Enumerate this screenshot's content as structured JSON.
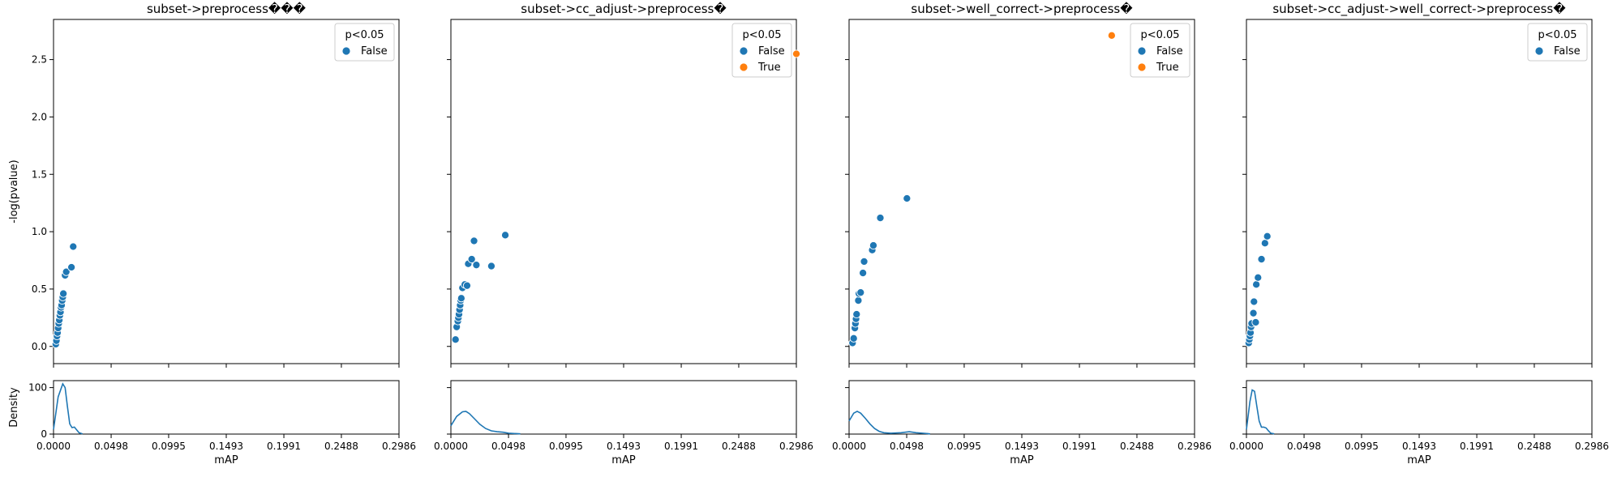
{
  "figure": {
    "background": "#ffffff"
  },
  "colors": {
    "false": "#1f77b4",
    "true": "#ff7f0e",
    "density": "#1f77b4"
  },
  "chart_data": [
    {
      "type": "scatter",
      "title": "subset->preprocess���",
      "ylabel": "-log(pvalue)",
      "xlabel": "mAP",
      "xlim": [
        0,
        0.2986
      ],
      "ylim": [
        -0.15,
        2.85
      ],
      "xticks": [
        0.0,
        0.0498,
        0.0995,
        0.1493,
        0.1991,
        0.2488,
        0.2986
      ],
      "xtick_labels": [
        "0.0000",
        "0.0498",
        "0.0995",
        "0.1493",
        "0.1991",
        "0.2488",
        "0.2986"
      ],
      "yticks": [
        0.0,
        0.5,
        1.0,
        1.5,
        2.0,
        2.5
      ],
      "ytick_labels": [
        "0.0",
        "0.5",
        "1.0",
        "1.5",
        "2.0",
        "2.5"
      ],
      "legend": {
        "title": "p<0.05",
        "placement": "upper right",
        "entries": [
          "False"
        ]
      },
      "series": [
        {
          "name": "False",
          "color": "#1f77b4",
          "points": [
            [
              0.002,
              0.02
            ],
            [
              0.0025,
              0.05
            ],
            [
              0.003,
              0.09
            ],
            [
              0.0035,
              0.12
            ],
            [
              0.004,
              0.16
            ],
            [
              0.0045,
              0.2
            ],
            [
              0.005,
              0.23
            ],
            [
              0.0055,
              0.27
            ],
            [
              0.006,
              0.3
            ],
            [
              0.0065,
              0.34
            ],
            [
              0.007,
              0.36
            ],
            [
              0.0075,
              0.4
            ],
            [
              0.008,
              0.43
            ],
            [
              0.0085,
              0.46
            ],
            [
              0.01,
              0.62
            ],
            [
              0.011,
              0.65
            ],
            [
              0.0155,
              0.69
            ],
            [
              0.017,
              0.87
            ]
          ]
        }
      ],
      "density": {
        "ylabel": "Density",
        "ylim": [
          0,
          115
        ],
        "yticks": [
          0,
          100
        ],
        "ytick_labels": [
          "0",
          "100"
        ],
        "curve": [
          [
            0,
            10
          ],
          [
            0.004,
            80
          ],
          [
            0.008,
            108
          ],
          [
            0.01,
            100
          ],
          [
            0.012,
            60
          ],
          [
            0.014,
            22
          ],
          [
            0.016,
            14
          ],
          [
            0.018,
            15
          ],
          [
            0.02,
            9
          ],
          [
            0.022,
            3
          ],
          [
            0.025,
            0.5
          ]
        ]
      }
    },
    {
      "type": "scatter",
      "title": "subset->cc_adjust->preprocess�",
      "ylabel": "",
      "xlabel": "mAP",
      "xlim": [
        0,
        0.2986
      ],
      "ylim": [
        -0.15,
        2.85
      ],
      "xticks": [
        0.0,
        0.0498,
        0.0995,
        0.1493,
        0.1991,
        0.2488,
        0.2986
      ],
      "xtick_labels": [
        "0.0000",
        "0.0498",
        "0.0995",
        "0.1493",
        "0.1991",
        "0.2488",
        "0.2986"
      ],
      "yticks": [
        0.0,
        0.5,
        1.0,
        1.5,
        2.0,
        2.5
      ],
      "ytick_labels": [
        "",
        "",
        "",
        "",
        "",
        ""
      ],
      "legend": {
        "title": "p<0.05",
        "placement": "upper right",
        "entries": [
          "False",
          "True"
        ]
      },
      "series": [
        {
          "name": "False",
          "color": "#1f77b4",
          "points": [
            [
              0.004,
              0.06
            ],
            [
              0.005,
              0.17
            ],
            [
              0.006,
              0.22
            ],
            [
              0.0065,
              0.25
            ],
            [
              0.007,
              0.28
            ],
            [
              0.0075,
              0.32
            ],
            [
              0.008,
              0.36
            ],
            [
              0.0085,
              0.4
            ],
            [
              0.009,
              0.42
            ],
            [
              0.01,
              0.51
            ],
            [
              0.012,
              0.54
            ],
            [
              0.014,
              0.53
            ],
            [
              0.015,
              0.72
            ],
            [
              0.018,
              0.76
            ],
            [
              0.02,
              0.92
            ],
            [
              0.022,
              0.71
            ],
            [
              0.035,
              0.7
            ],
            [
              0.047,
              0.97
            ]
          ]
        },
        {
          "name": "True",
          "color": "#ff7f0e",
          "points": [
            [
              0.2986,
              2.55
            ]
          ]
        }
      ],
      "density": {
        "ylabel": "",
        "ylim": [
          0,
          115
        ],
        "yticks": [
          0,
          100
        ],
        "ytick_labels": [
          "",
          ""
        ],
        "curve": [
          [
            0,
            18
          ],
          [
            0.005,
            38
          ],
          [
            0.01,
            48
          ],
          [
            0.013,
            49
          ],
          [
            0.016,
            44
          ],
          [
            0.02,
            34
          ],
          [
            0.025,
            21
          ],
          [
            0.03,
            12
          ],
          [
            0.035,
            7
          ],
          [
            0.04,
            5
          ],
          [
            0.045,
            4
          ],
          [
            0.05,
            2
          ],
          [
            0.06,
            0.5
          ]
        ]
      }
    },
    {
      "type": "scatter",
      "title": "subset->well_correct->preprocess�",
      "ylabel": "",
      "xlabel": "mAP",
      "xlim": [
        0,
        0.2986
      ],
      "ylim": [
        -0.15,
        2.85
      ],
      "xticks": [
        0.0,
        0.0498,
        0.0995,
        0.1493,
        0.1991,
        0.2488,
        0.2986
      ],
      "xtick_labels": [
        "0.0000",
        "0.0498",
        "0.0995",
        "0.1493",
        "0.1991",
        "0.2488",
        "0.2986"
      ],
      "yticks": [
        0.0,
        0.5,
        1.0,
        1.5,
        2.0,
        2.5
      ],
      "ytick_labels": [
        "",
        "",
        "",
        "",
        "",
        ""
      ],
      "legend": {
        "title": "p<0.05",
        "placement": "upper right",
        "entries": [
          "False",
          "True"
        ]
      },
      "series": [
        {
          "name": "False",
          "color": "#1f77b4",
          "points": [
            [
              0.003,
              0.03
            ],
            [
              0.004,
              0.07
            ],
            [
              0.005,
              0.16
            ],
            [
              0.0055,
              0.2
            ],
            [
              0.006,
              0.24
            ],
            [
              0.0065,
              0.28
            ],
            [
              0.008,
              0.4
            ],
            [
              0.0085,
              0.46
            ],
            [
              0.01,
              0.47
            ],
            [
              0.012,
              0.64
            ],
            [
              0.013,
              0.74
            ],
            [
              0.02,
              0.84
            ],
            [
              0.021,
              0.88
            ],
            [
              0.027,
              1.12
            ],
            [
              0.05,
              1.29
            ]
          ]
        },
        {
          "name": "True",
          "color": "#ff7f0e",
          "points": [
            [
              0.227,
              2.71
            ]
          ]
        }
      ],
      "density": {
        "ylabel": "",
        "ylim": [
          0,
          115
        ],
        "yticks": [
          0,
          100
        ],
        "ytick_labels": [
          "",
          ""
        ],
        "curve": [
          [
            0,
            28
          ],
          [
            0.004,
            45
          ],
          [
            0.007,
            49
          ],
          [
            0.01,
            45
          ],
          [
            0.014,
            34
          ],
          [
            0.018,
            22
          ],
          [
            0.022,
            12
          ],
          [
            0.026,
            6
          ],
          [
            0.03,
            3
          ],
          [
            0.036,
            2
          ],
          [
            0.045,
            3
          ],
          [
            0.052,
            5
          ],
          [
            0.058,
            3
          ],
          [
            0.068,
            1
          ],
          [
            0.07,
            0.3
          ]
        ]
      }
    },
    {
      "type": "scatter",
      "title": "subset->cc_adjust->well_correct->preprocess�",
      "ylabel": "",
      "xlabel": "mAP",
      "xlim": [
        0,
        0.2986
      ],
      "ylim": [
        -0.15,
        2.85
      ],
      "xticks": [
        0.0,
        0.0498,
        0.0995,
        0.1493,
        0.1991,
        0.2488,
        0.2986
      ],
      "xtick_labels": [
        "0.0000",
        "0.0498",
        "0.0995",
        "0.1493",
        "0.1991",
        "0.2488",
        "0.2986"
      ],
      "yticks": [
        0.0,
        0.5,
        1.0,
        1.5,
        2.0,
        2.5
      ],
      "ytick_labels": [
        "",
        "",
        "",
        "",
        "",
        ""
      ],
      "legend": {
        "title": "p<0.05",
        "placement": "upper right",
        "entries": [
          "False"
        ]
      },
      "series": [
        {
          "name": "False",
          "color": "#1f77b4",
          "points": [
            [
              0.002,
              0.03
            ],
            [
              0.0025,
              0.06
            ],
            [
              0.003,
              0.09
            ],
            [
              0.0035,
              0.12
            ],
            [
              0.004,
              0.17
            ],
            [
              0.0045,
              0.2
            ],
            [
              0.006,
              0.29
            ],
            [
              0.0065,
              0.39
            ],
            [
              0.008,
              0.21
            ],
            [
              0.0085,
              0.54
            ],
            [
              0.01,
              0.6
            ],
            [
              0.013,
              0.76
            ],
            [
              0.016,
              0.9
            ],
            [
              0.018,
              0.96
            ]
          ]
        }
      ],
      "density": {
        "ylabel": "",
        "ylim": [
          0,
          115
        ],
        "yticks": [
          0,
          100
        ],
        "ytick_labels": [
          "",
          ""
        ],
        "curve": [
          [
            0,
            10
          ],
          [
            0.003,
            70
          ],
          [
            0.005,
            95
          ],
          [
            0.007,
            92
          ],
          [
            0.009,
            60
          ],
          [
            0.011,
            28
          ],
          [
            0.013,
            15
          ],
          [
            0.015,
            15
          ],
          [
            0.017,
            13
          ],
          [
            0.019,
            7
          ],
          [
            0.021,
            2
          ],
          [
            0.024,
            0.5
          ]
        ]
      }
    }
  ]
}
